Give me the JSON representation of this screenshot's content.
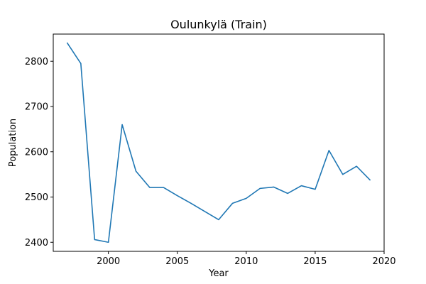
{
  "chart_data": {
    "type": "line",
    "title": "Oulunkylä (Train)",
    "xlabel": "Year",
    "ylabel": "Population",
    "xlim": [
      1996.0,
      2020.0
    ],
    "ylim": [
      2380,
      2860
    ],
    "xticks": [
      2000,
      2005,
      2010,
      2015,
      2020
    ],
    "yticks": [
      2400,
      2500,
      2600,
      2700,
      2800
    ],
    "grid": false,
    "series_color": "#1f77b4",
    "series": [
      {
        "x": [
          1997,
          1998,
          1999,
          2000,
          2001,
          2002,
          2003,
          2004,
          2005,
          2006,
          2007,
          2008,
          2009,
          2010,
          2011,
          2012,
          2013,
          2014,
          2015,
          2016,
          2017,
          2018,
          2019
        ],
        "values": [
          2841,
          2795,
          2406,
          2400,
          2660,
          2557,
          2521,
          2521,
          2503,
          2486,
          2468,
          2450,
          2486,
          2497,
          2519,
          2522,
          2508,
          2525,
          2517,
          2603,
          2550,
          2568,
          2537
        ]
      }
    ]
  }
}
